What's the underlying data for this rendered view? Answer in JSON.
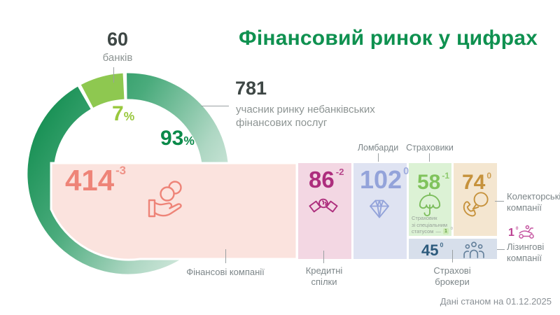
{
  "title": "Фінансовий ринок у цифрах",
  "units": {
    "percent": "%"
  },
  "colors": {
    "title_green": "#0f9150",
    "donut_dark_green": "#0c8a4b",
    "donut_light_mint": "#dcede4",
    "donut_small_slice": "#8ec850",
    "financial_bg": "#fbe3de",
    "financial_accent": "#ee8478",
    "credit_bg": "#f3d7e3",
    "credit_accent": "#ad2e7d",
    "pawnshops_bg": "#dfe3f2",
    "pawnshops_accent": "#93a3da",
    "insurers_bg": "#dcf2d5",
    "insurers_accent": "#80c35c",
    "collectors_bg": "#f4e6d0",
    "collectors_accent": "#c6923c",
    "brokers_bg": "#d7dfeb",
    "brokers_accent": "#2c5a7c",
    "leasing_accent": "#bb3f91"
  },
  "display": {
    "banks_label": "банків",
    "nonbank_label": "учасник ринку небанківських\nфінансових послуг",
    "financial_label": "Фінансові компанії",
    "credit_label": "Кредитні\nспілки",
    "pawnshops_label": "Ломбарди",
    "insurers_label": "Страховики",
    "collectors_label": "Колекторські\nкомпанії",
    "brokers_label": "Страхові\nброкери",
    "leasing_label": "Лізингові\nкомпанії",
    "special": {
      "line1": "Страховик",
      "line2": "зі спеціальним",
      "line3": "статусом",
      "dash": "—",
      "value": "1",
      "delta": "0"
    }
  },
  "blocks": {
    "financial": {
      "value": "414",
      "delta": "-3"
    },
    "credit": {
      "value": "86",
      "delta": "-2"
    },
    "pawnshops": {
      "value": "102",
      "delta": "0"
    },
    "insurers": {
      "value": "58",
      "delta": "-1"
    },
    "collectors": {
      "value": "74",
      "delta": "0"
    },
    "brokers": {
      "value": "45",
      "delta": "0"
    },
    "leasing": {
      "value": "1",
      "delta": "0"
    }
  },
  "footer": {
    "note": "Дані станом на 01.12.2025"
  },
  "chart_data": {
    "type": "pie",
    "title": "Фінансовий ринок у цифрах",
    "as_of": "01.12.2025",
    "legend_position": "around-donut",
    "donut": {
      "slices": [
        {
          "label": "банків",
          "count": 60,
          "pct": 7,
          "color": "#8ec850"
        },
        {
          "label": "учасник ринку небанківських фінансових послуг",
          "count": 781,
          "pct": 93,
          "color": "gradient #0c8a4b → #dcede4"
        }
      ]
    },
    "nonbank_breakdown": [
      {
        "label": "Фінансові компанії",
        "value": 414,
        "change": -3
      },
      {
        "label": "Кредитні спілки",
        "value": 86,
        "change": -2
      },
      {
        "label": "Ломбарди",
        "value": 102,
        "change": 0
      },
      {
        "label": "Страховики",
        "value": 58,
        "change": -1
      },
      {
        "label": "Страховик зі спеціальним статусом",
        "value": 1,
        "change": 0
      },
      {
        "label": "Колекторські компанії",
        "value": 74,
        "change": 0
      },
      {
        "label": "Страхові брокери",
        "value": 45,
        "change": 0
      },
      {
        "label": "Лізингові компанії",
        "value": 1,
        "change": 0
      }
    ]
  }
}
